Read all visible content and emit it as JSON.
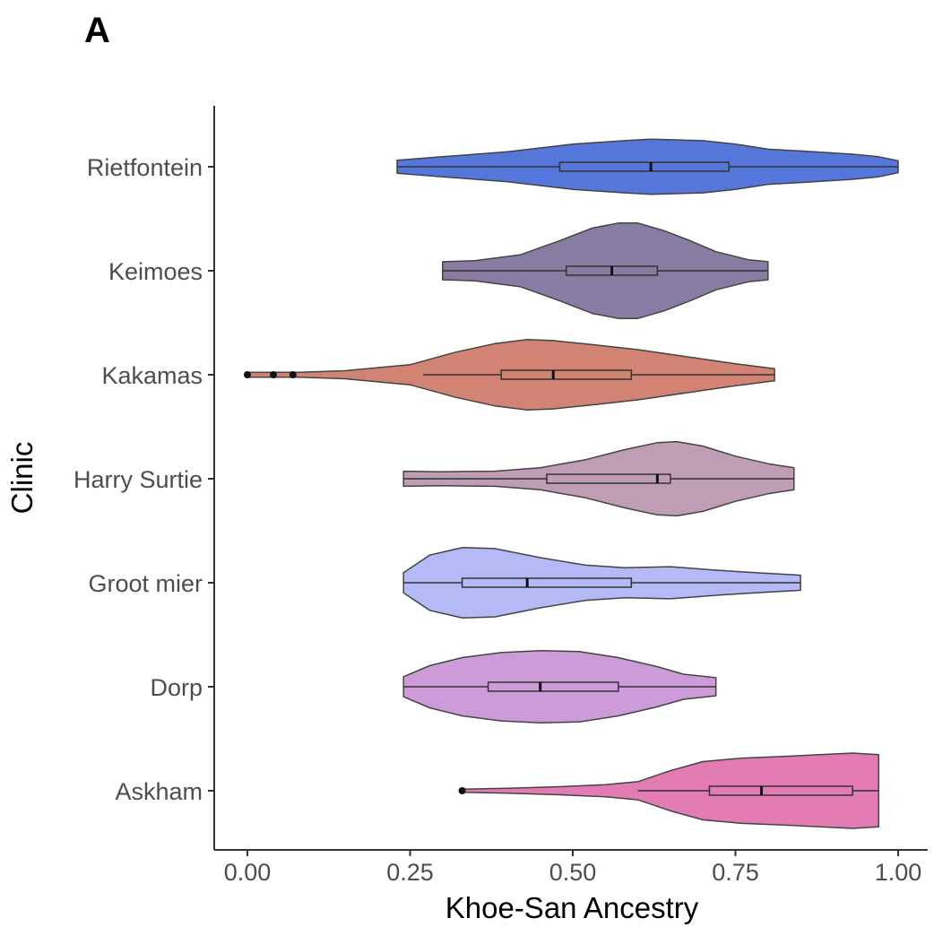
{
  "panel_label": "A",
  "chart_data": {
    "type": "violin",
    "orientation": "horizontal",
    "xlabel": "Khoe-San Ancestry",
    "ylabel": "Clinic",
    "xlim": [
      -0.05,
      1.05
    ],
    "xticks": [
      0.0,
      0.25,
      0.5,
      0.75,
      1.0
    ],
    "xtick_labels": [
      "0.00",
      "0.25",
      "0.50",
      "0.75",
      "1.00"
    ],
    "grid": false,
    "legend": "none",
    "categories": [
      "Rietfontein",
      "Keimoes",
      "Kakamas",
      "Harry Surtie",
      "Groot mier",
      "Dorp",
      "Askham"
    ],
    "series": [
      {
        "name": "Rietfontein",
        "color": "#3d63d6",
        "range": [
          0.23,
          1.0
        ],
        "box": {
          "whisker_low": 0.23,
          "q1": 0.48,
          "median": 0.62,
          "q3": 0.74,
          "whisker_high": 1.0
        },
        "outliers": [],
        "density": [
          [
            0.23,
            0.13
          ],
          [
            0.3,
            0.2
          ],
          [
            0.4,
            0.3
          ],
          [
            0.5,
            0.45
          ],
          [
            0.58,
            0.52
          ],
          [
            0.62,
            0.55
          ],
          [
            0.7,
            0.52
          ],
          [
            0.75,
            0.45
          ],
          [
            0.8,
            0.35
          ],
          [
            0.87,
            0.3
          ],
          [
            0.93,
            0.25
          ],
          [
            0.97,
            0.2
          ],
          [
            1.0,
            0.12
          ]
        ]
      },
      {
        "name": "Keimoes",
        "color": "#786a96",
        "range": [
          0.3,
          0.8
        ],
        "box": {
          "whisker_low": 0.3,
          "q1": 0.49,
          "median": 0.56,
          "q3": 0.63,
          "whisker_high": 0.8
        },
        "outliers": [],
        "density": [
          [
            0.3,
            0.18
          ],
          [
            0.35,
            0.2
          ],
          [
            0.42,
            0.32
          ],
          [
            0.48,
            0.6
          ],
          [
            0.53,
            0.85
          ],
          [
            0.57,
            0.95
          ],
          [
            0.6,
            0.95
          ],
          [
            0.64,
            0.8
          ],
          [
            0.68,
            0.6
          ],
          [
            0.72,
            0.38
          ],
          [
            0.77,
            0.22
          ],
          [
            0.8,
            0.18
          ]
        ]
      },
      {
        "name": "Kakamas",
        "color": "#cb7360",
        "range": [
          0.0,
          0.81
        ],
        "box": {
          "whisker_low": 0.27,
          "q1": 0.39,
          "median": 0.47,
          "q3": 0.59,
          "whisker_high": 0.81
        },
        "outliers": [
          0.0,
          0.04,
          0.07
        ],
        "density": [
          [
            0.0,
            0.05
          ],
          [
            0.04,
            0.05
          ],
          [
            0.08,
            0.05
          ],
          [
            0.15,
            0.08
          ],
          [
            0.25,
            0.2
          ],
          [
            0.32,
            0.45
          ],
          [
            0.38,
            0.62
          ],
          [
            0.43,
            0.7
          ],
          [
            0.47,
            0.68
          ],
          [
            0.53,
            0.6
          ],
          [
            0.6,
            0.5
          ],
          [
            0.68,
            0.35
          ],
          [
            0.75,
            0.22
          ],
          [
            0.81,
            0.12
          ]
        ]
      },
      {
        "name": "Harry Surtie",
        "color": "#b690ab",
        "range": [
          0.24,
          0.84
        ],
        "box": {
          "whisker_low": 0.24,
          "q1": 0.46,
          "median": 0.63,
          "q3": 0.65,
          "whisker_high": 0.84
        },
        "outliers": [],
        "density": [
          [
            0.24,
            0.15
          ],
          [
            0.3,
            0.14
          ],
          [
            0.38,
            0.15
          ],
          [
            0.45,
            0.22
          ],
          [
            0.52,
            0.38
          ],
          [
            0.58,
            0.58
          ],
          [
            0.63,
            0.72
          ],
          [
            0.66,
            0.74
          ],
          [
            0.7,
            0.65
          ],
          [
            0.75,
            0.45
          ],
          [
            0.8,
            0.3
          ],
          [
            0.84,
            0.22
          ]
        ]
      },
      {
        "name": "Groot mier",
        "color": "#a8b0f5",
        "range": [
          0.24,
          0.85
        ],
        "box": {
          "whisker_low": 0.24,
          "q1": 0.33,
          "median": 0.43,
          "q3": 0.59,
          "whisker_high": 0.85
        },
        "outliers": [],
        "density": [
          [
            0.24,
            0.2
          ],
          [
            0.28,
            0.55
          ],
          [
            0.33,
            0.7
          ],
          [
            0.38,
            0.68
          ],
          [
            0.45,
            0.5
          ],
          [
            0.52,
            0.35
          ],
          [
            0.58,
            0.3
          ],
          [
            0.65,
            0.32
          ],
          [
            0.72,
            0.25
          ],
          [
            0.78,
            0.2
          ],
          [
            0.85,
            0.15
          ]
        ]
      },
      {
        "name": "Dorp",
        "color": "#c68ed3",
        "range": [
          0.24,
          0.72
        ],
        "box": {
          "whisker_low": 0.24,
          "q1": 0.37,
          "median": 0.45,
          "q3": 0.57,
          "whisker_high": 0.72
        },
        "outliers": [],
        "density": [
          [
            0.24,
            0.2
          ],
          [
            0.28,
            0.42
          ],
          [
            0.33,
            0.58
          ],
          [
            0.39,
            0.68
          ],
          [
            0.45,
            0.72
          ],
          [
            0.51,
            0.7
          ],
          [
            0.57,
            0.58
          ],
          [
            0.63,
            0.4
          ],
          [
            0.67,
            0.25
          ],
          [
            0.72,
            0.18
          ]
        ]
      },
      {
        "name": "Askham",
        "color": "#de6aa9",
        "range": [
          0.33,
          0.97
        ],
        "box": {
          "whisker_low": 0.6,
          "q1": 0.71,
          "median": 0.79,
          "q3": 0.93,
          "whisker_high": 0.97
        },
        "outliers": [
          0.33
        ],
        "density": [
          [
            0.33,
            0.03
          ],
          [
            0.4,
            0.05
          ],
          [
            0.48,
            0.08
          ],
          [
            0.55,
            0.12
          ],
          [
            0.6,
            0.18
          ],
          [
            0.65,
            0.4
          ],
          [
            0.7,
            0.58
          ],
          [
            0.76,
            0.65
          ],
          [
            0.82,
            0.68
          ],
          [
            0.88,
            0.72
          ],
          [
            0.93,
            0.75
          ],
          [
            0.97,
            0.72
          ]
        ]
      }
    ]
  }
}
